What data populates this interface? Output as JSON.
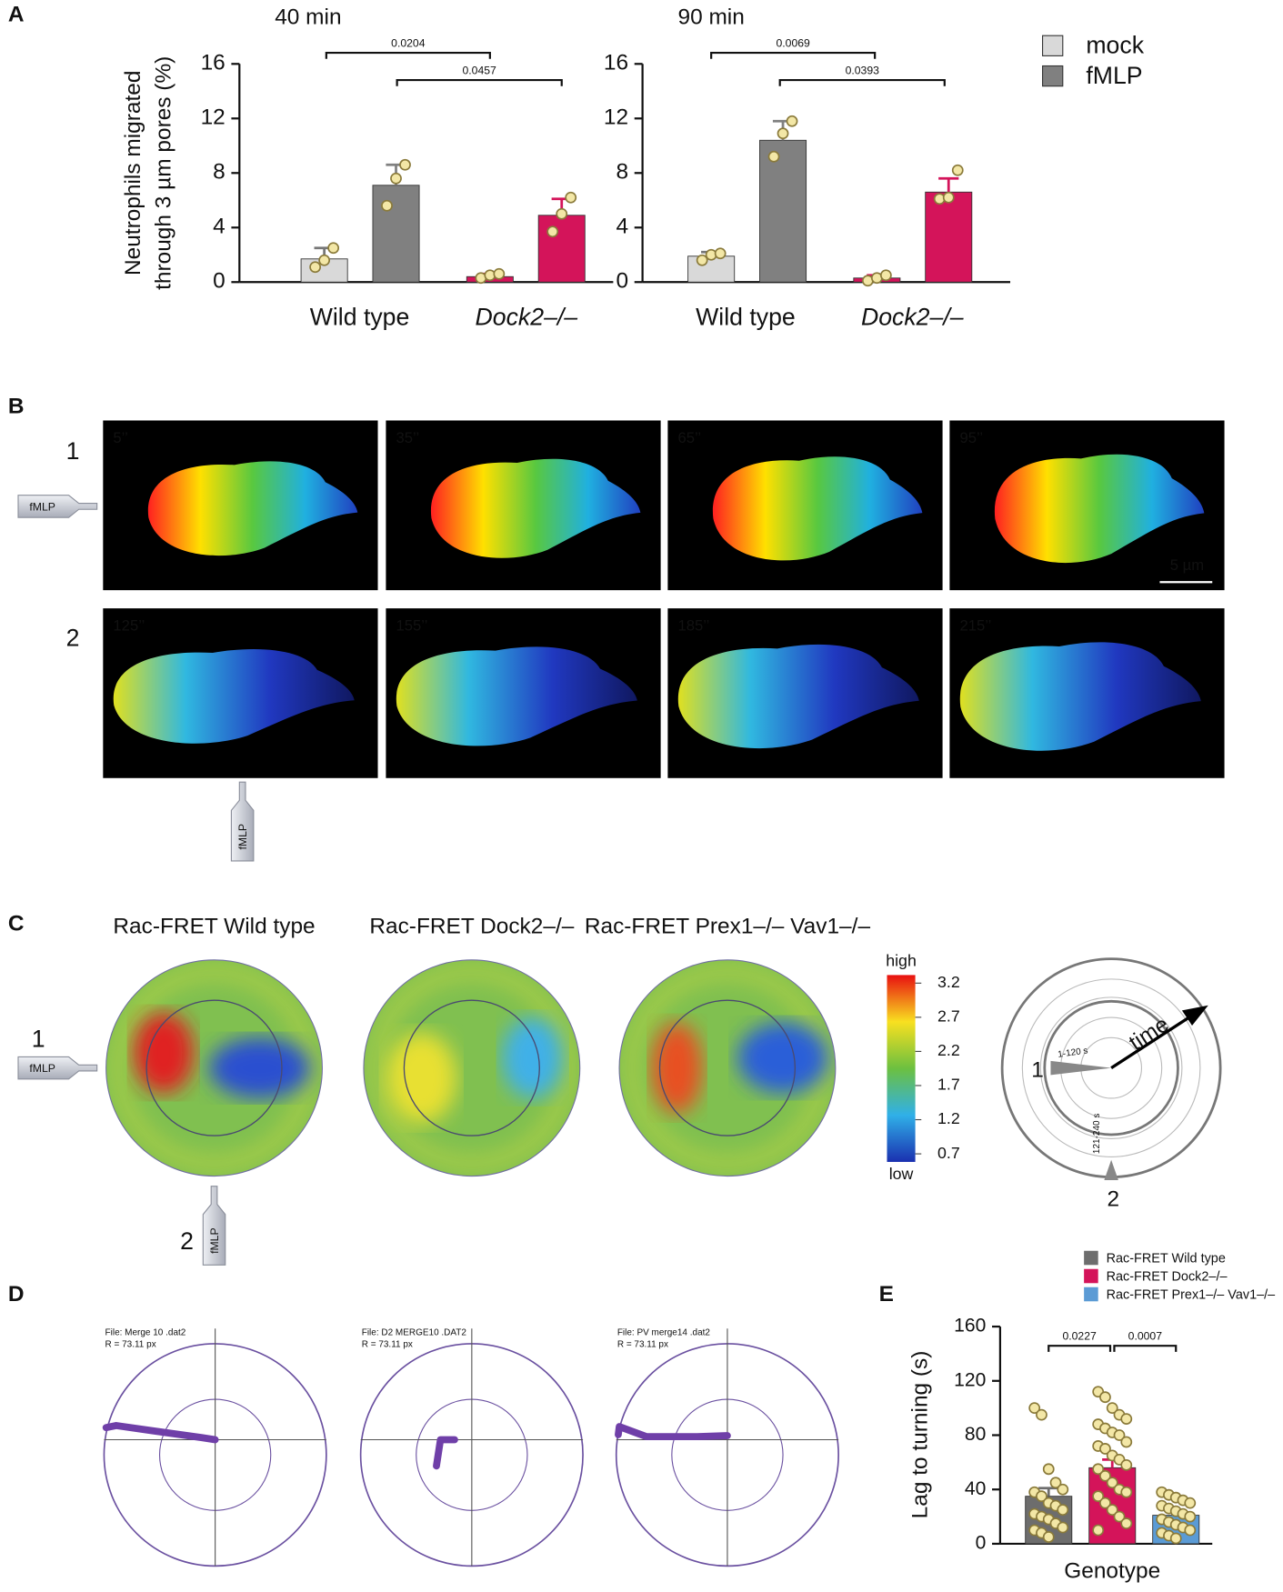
{
  "panels": [
    "A",
    "B",
    "C",
    "D",
    "E"
  ],
  "chart_data": [
    {
      "type": "bar",
      "title": "40 min",
      "ylabel": [
        "Neutrophils migrated",
        "through 3 µm pores (%)"
      ],
      "categories": [
        "Wild type",
        "Dock2–/–"
      ],
      "series": [
        {
          "name": "mock",
          "color": "#d9d9d9",
          "colors": [
            "#d9d9d9",
            "#d4145a"
          ],
          "values": [
            1.7,
            0.4
          ],
          "errors": [
            0.8,
            0.2
          ],
          "points": [
            [
              1.1,
              1.6,
              2.5
            ],
            [
              0.3,
              0.5,
              0.6
            ]
          ]
        },
        {
          "name": "fMLP",
          "color": "#808080",
          "colors": [
            "#808080",
            "#d4145a"
          ],
          "values": [
            7.1,
            4.9
          ],
          "errors": [
            1.5,
            1.2
          ],
          "points": [
            [
              5.6,
              7.6,
              8.6
            ],
            [
              3.7,
              5.0,
              6.2
            ]
          ]
        }
      ],
      "annotations": [
        "0.0204",
        "0.0457"
      ],
      "ylim": [
        0,
        16
      ],
      "yticks": [
        0,
        4,
        8,
        12,
        16
      ]
    },
    {
      "type": "bar",
      "title": "90 min",
      "categories": [
        "Wild type",
        "Dock2–/–"
      ],
      "series": [
        {
          "colors": [
            "#d9d9d9",
            "#d4145a"
          ],
          "values": [
            1.9,
            0.3
          ],
          "errors": [
            0.3,
            0.2
          ],
          "points": [
            [
              1.6,
              2.0,
              2.1
            ],
            [
              0.1,
              0.3,
              0.5
            ]
          ]
        },
        {
          "colors": [
            "#808080",
            "#d4145a"
          ],
          "values": [
            10.4,
            6.6
          ],
          "errors": [
            1.4,
            1.0
          ],
          "points": [
            [
              9.2,
              10.9,
              11.8
            ],
            [
              6.1,
              6.2,
              8.2
            ]
          ]
        }
      ],
      "annotations": [
        "0.0069",
        "0.0393"
      ],
      "ylim": [
        0,
        16
      ],
      "yticks": [
        0,
        4,
        8,
        12,
        16
      ]
    },
    {
      "type": "bar",
      "ylabel": "Lag to turning (s)",
      "xlabel": "Genotype",
      "series": [
        {
          "name": "Rac-FRET Wild type",
          "color": "#6d6d6d",
          "values": [
            35
          ],
          "errors": [
            6
          ],
          "points": [
            [
              100,
              95,
              55,
              45,
              40,
              38,
              35,
              30,
              28,
              25,
              22,
              20,
              18,
              15,
              12,
              10,
              8,
              5
            ]
          ]
        },
        {
          "name": "Rac-FRET Dock2–/–",
          "color": "#d4145a",
          "values": [
            56
          ],
          "errors": [
            6
          ],
          "points": [
            [
              112,
              108,
              100,
              95,
              92,
              88,
              85,
              82,
              80,
              75,
              72,
              70,
              65,
              62,
              58,
              55,
              50,
              45,
              40,
              38,
              35,
              30,
              25,
              20,
              15,
              10
            ]
          ]
        },
        {
          "name": "Rac-FRET Prex1–/– Vav1–/–",
          "color": "#5b9bd5",
          "values": [
            21
          ],
          "errors": [
            3
          ],
          "points": [
            [
              38,
              36,
              34,
              32,
              30,
              28,
              26,
              24,
              22,
              20,
              18,
              16,
              14,
              12,
              10,
              8,
              6,
              4
            ]
          ]
        }
      ],
      "annotations": [
        "0.0227",
        "0.0007"
      ],
      "ylim": [
        0,
        160
      ],
      "yticks": [
        0,
        40,
        80,
        120,
        160
      ]
    }
  ],
  "stimulus": "fMLP",
  "panel_b": {
    "rows": [
      "1",
      "2"
    ],
    "frames": [
      "5’’",
      "35’’",
      "65’’",
      "95’’",
      "125’’",
      "155’’",
      "185’’",
      "215’’"
    ],
    "scale_bar": "5 µm"
  },
  "panel_c": {
    "titles": [
      "Rac-FRET Wild type",
      "Rac-FRET Dock2–/–",
      "Rac-FRET Prex1–/– Vav1–/–"
    ],
    "positions": [
      "1",
      "2"
    ],
    "colorbar": {
      "high": "high",
      "low": "low",
      "ticks": [
        3.2,
        2.7,
        2.2,
        1.7,
        1.2,
        0.7
      ]
    },
    "schematic": {
      "first": "1-120 s",
      "second": "121-240 s",
      "arrow": "time",
      "marks": [
        "1",
        "2"
      ]
    }
  },
  "panel_d": {
    "files": [
      "File: Merge 10 .dat2",
      "File: D2 MERGE10 .DAT2",
      "File: PV merge14 .dat2"
    ],
    "radius": "R = 73.11 px"
  }
}
